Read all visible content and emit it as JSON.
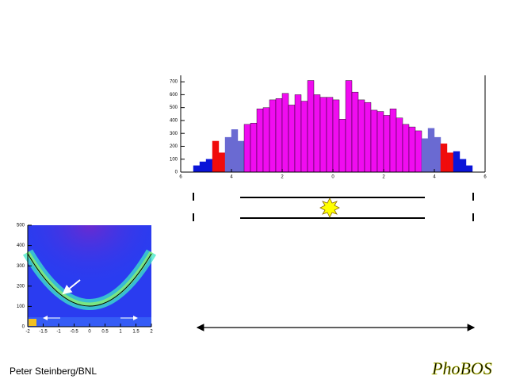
{
  "chart_data": [
    {
      "type": "histogram",
      "xlim": [
        -6,
        6
      ],
      "ylim": [
        0,
        750
      ],
      "xticks": [
        {
          "value": -6,
          "label": "6"
        },
        {
          "value": -4,
          "label": "4"
        },
        {
          "value": -2,
          "label": "2"
        },
        0,
        2,
        4,
        6
      ],
      "yticks": [
        0,
        100,
        200,
        300,
        400,
        500,
        600,
        700
      ],
      "series": [
        {
          "color": "#0a14d8",
          "bins": [
            -5.5,
            -5.25,
            -5.0,
            -4.75
          ],
          "values": [
            50,
            80,
            100
          ]
        },
        {
          "color": "#f00c0c",
          "bins": [
            -4.75,
            -4.5,
            -4.25
          ],
          "values": [
            240,
            150
          ]
        },
        {
          "color": "#6a6ad2",
          "bins": [
            -4.25,
            -4.0,
            -3.75,
            -3.5
          ],
          "values": [
            270,
            330,
            240
          ]
        },
        {
          "color": "#f00cf0",
          "bins": [
            -3.5,
            -3.25,
            -3.0,
            -2.75,
            -2.5,
            -2.25,
            -2.0,
            -1.75,
            -1.5,
            -1.25,
            -1.0,
            -0.75,
            -0.5,
            -0.25,
            0.0,
            0.25,
            0.5,
            0.75,
            1.0,
            1.25,
            1.5,
            1.75,
            2.0,
            2.25,
            2.5,
            2.75,
            3.0,
            3.25,
            3.5
          ],
          "values": [
            370,
            380,
            490,
            500,
            560,
            570,
            610,
            520,
            600,
            550,
            710,
            600,
            580,
            580,
            560,
            410,
            710,
            620,
            560,
            540,
            480,
            470,
            440,
            490,
            420,
            370,
            350,
            320
          ]
        },
        {
          "color": "#6a6ad2",
          "bins": [
            3.5,
            3.75,
            4.0,
            4.25
          ],
          "values": [
            260,
            340,
            270
          ]
        },
        {
          "color": "#f00c0c",
          "bins": [
            4.25,
            4.5,
            4.75
          ],
          "values": [
            220,
            150
          ]
        },
        {
          "color": "#0a14d8",
          "bins": [
            4.75,
            5.0,
            5.25,
            5.5
          ],
          "values": [
            160,
            100,
            50
          ]
        }
      ]
    },
    {
      "type": "heatmap",
      "xlim": [
        -2,
        2
      ],
      "ylim": [
        0,
        500
      ],
      "xticks": [
        -2,
        -1.5,
        -1,
        -0.5,
        0,
        0.5,
        1,
        1.5,
        2
      ],
      "yticks": [
        0,
        100,
        200,
        300,
        400,
        500
      ]
    }
  ],
  "footer": {
    "author": "Peter Steinberg/BNL",
    "logo": "PhoBOS"
  }
}
